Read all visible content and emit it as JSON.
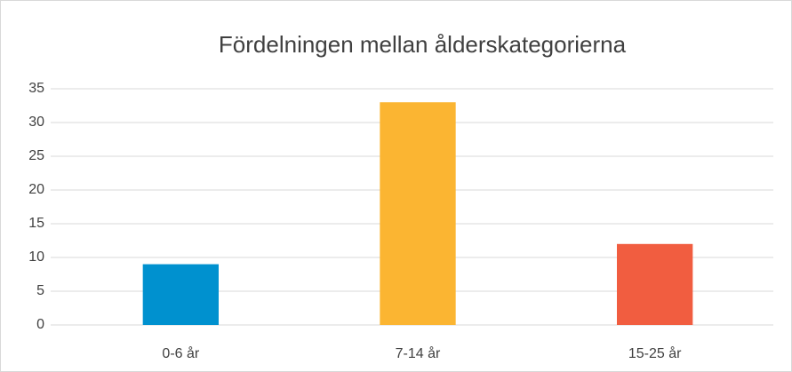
{
  "chart_data": {
    "type": "bar",
    "title": "Fördelningen mellan ålderskategorierna",
    "categories": [
      "0-6 år",
      "7-14 år",
      "15-25 år"
    ],
    "values": [
      9,
      33,
      12
    ],
    "colors": [
      "#0091cf",
      "#fbb532",
      "#f15d40"
    ],
    "ylim": [
      0,
      35
    ],
    "yticks": [
      0,
      5,
      10,
      15,
      20,
      25,
      30,
      35
    ],
    "grid": true
  }
}
